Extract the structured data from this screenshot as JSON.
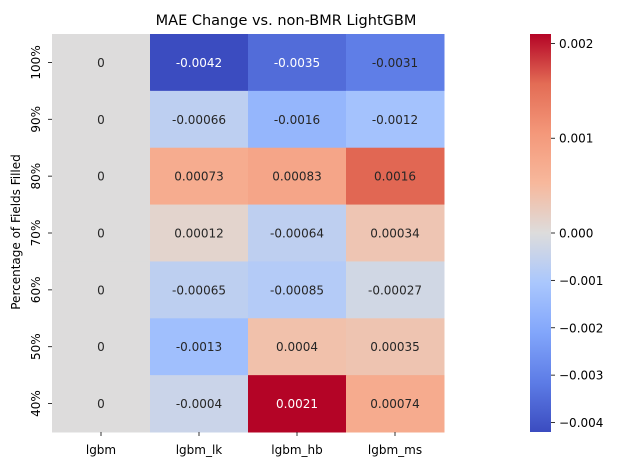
{
  "chart_data": {
    "type": "heatmap",
    "title": "MAE Change vs. non-BMR LightGBM",
    "xlabel": "",
    "ylabel": "Percentage of Fields Filled",
    "columns": [
      "lgbm",
      "lgbm_lk",
      "lgbm_hb",
      "lgbm_ms"
    ],
    "rows": [
      "100%",
      "90%",
      "80%",
      "70%",
      "60%",
      "50%",
      "40%"
    ],
    "values": [
      [
        0,
        -0.0042,
        -0.0035,
        -0.0031
      ],
      [
        0,
        -0.00066,
        -0.0016,
        -0.0012
      ],
      [
        0,
        0.00073,
        0.00083,
        0.0016
      ],
      [
        0,
        0.00012,
        -0.00064,
        0.00034
      ],
      [
        0,
        -0.00065,
        -0.00085,
        -0.00027
      ],
      [
        0,
        -0.0013,
        0.0004,
        0.00035
      ],
      [
        0,
        -0.0004,
        0.0021,
        0.00074
      ]
    ],
    "labels": [
      [
        "0",
        "-0.0042",
        "-0.0035",
        "-0.0031"
      ],
      [
        "0",
        "-0.00066",
        "-0.0016",
        "-0.0012"
      ],
      [
        "0",
        "0.00073",
        "0.00083",
        "0.0016"
      ],
      [
        "0",
        "0.00012",
        "-0.00064",
        "0.00034"
      ],
      [
        "0",
        "-0.00065",
        "-0.00085",
        "-0.00027"
      ],
      [
        "0",
        "-0.0013",
        "0.0004",
        "0.00035"
      ],
      [
        "0",
        "-0.0004",
        "0.0021",
        "0.00074"
      ]
    ],
    "colormap": "coolwarm",
    "color_range": [
      -0.0042,
      0.0021
    ],
    "colorbar": {
      "ticks": [
        0.002,
        0.001,
        0.0,
        -0.001,
        -0.002,
        -0.003,
        -0.004
      ],
      "tick_labels": [
        "0.002",
        "0.001",
        "0.000",
        "−0.001",
        "−0.002",
        "−0.003",
        "−0.004"
      ]
    },
    "grid": false,
    "legend": "colorbar-right"
  }
}
